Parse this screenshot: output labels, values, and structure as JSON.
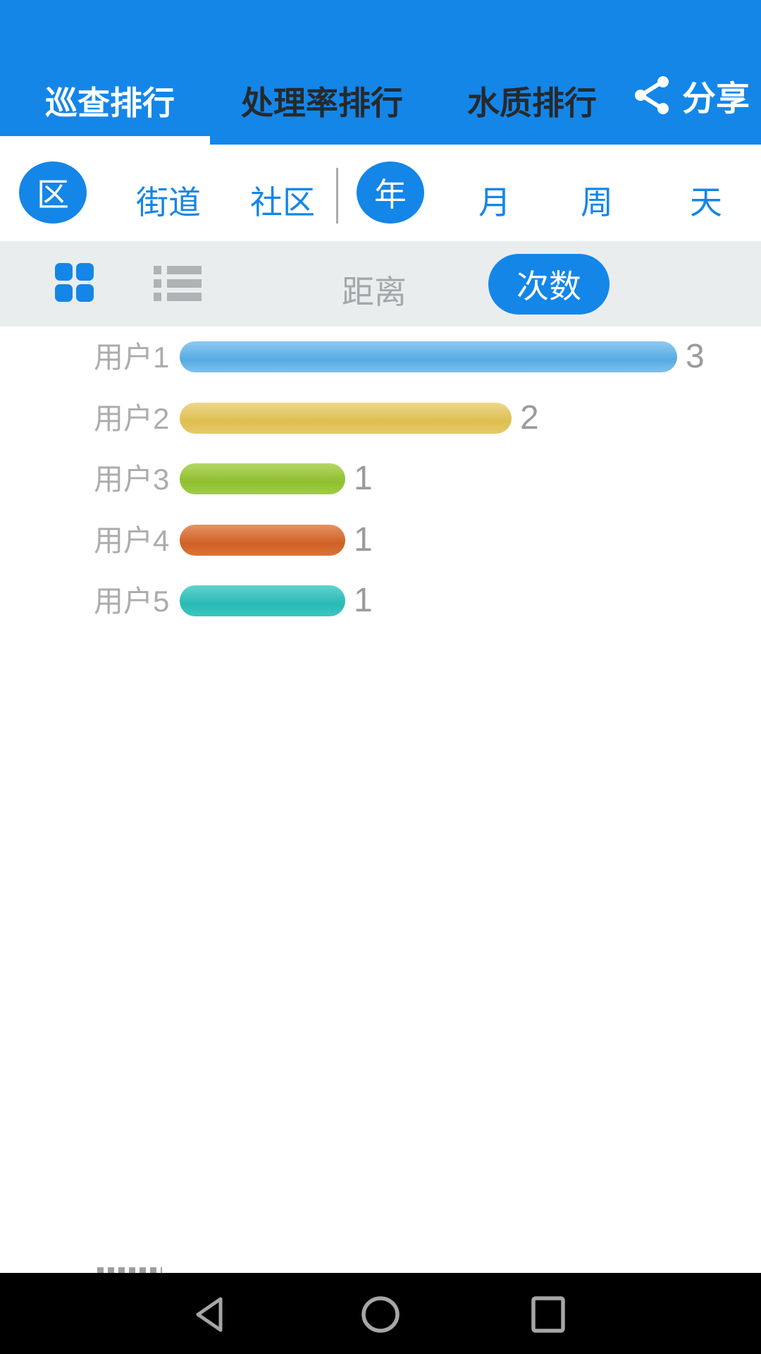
{
  "header": {
    "tabs": [
      {
        "label": "巡查排行",
        "active": true
      },
      {
        "label": "处理率排行",
        "active": false
      },
      {
        "label": "水质排行",
        "active": false
      }
    ],
    "share_label": "分享",
    "accent_color": "#1486E8",
    "inactive_tab_color": "#26292B"
  },
  "filters": {
    "region": {
      "options": [
        "区",
        "街道",
        "社区"
      ],
      "selected": "区"
    },
    "period": {
      "options": [
        "年",
        "月",
        "周",
        "天"
      ],
      "selected": "年"
    }
  },
  "toolbar": {
    "view_icons": [
      "grid-view-icon",
      "list-view-icon"
    ],
    "metric_distance_label": "距离",
    "metric_count_label": "次数",
    "selected_metric": "次数",
    "background_color": "#E9EDEE"
  },
  "chart_data": {
    "type": "bar",
    "orientation": "horizontal",
    "categories": [
      "用户1",
      "用户2",
      "用户3",
      "用户4",
      "用户5"
    ],
    "values": [
      3,
      2,
      1,
      1,
      1
    ],
    "xlim": [
      0,
      3
    ],
    "value_labels": [
      "3",
      "2",
      "1",
      "1",
      "1"
    ],
    "grid": false,
    "legend": false,
    "bar_gradients": [
      [
        "#8FC9F0",
        "#55ABE2",
        "#7FC0EC"
      ],
      [
        "#EDD88C",
        "#DDBE50",
        "#E6CA6A"
      ],
      [
        "#B5D765",
        "#8FBF2F",
        "#9ECD44"
      ],
      [
        "#E79263",
        "#CE6126",
        "#DA7236"
      ],
      [
        "#5FD4CE",
        "#29B9B4",
        "#3CC6C0"
      ]
    ],
    "label_color": "#ACACAC",
    "value_color": "#9B9B9B"
  },
  "navbar": {
    "icons": [
      "back-icon",
      "home-icon",
      "recents-icon"
    ],
    "background_color": "#000000",
    "icon_color": "#A6A6A6"
  }
}
